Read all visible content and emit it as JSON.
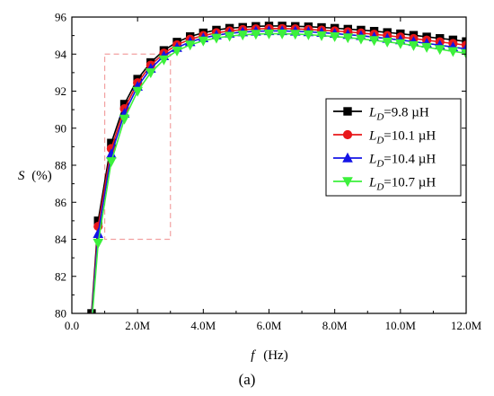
{
  "chart_data": {
    "type": "line",
    "title": "",
    "caption": "(a)",
    "xlabel": {
      "var": "f",
      "unit": "(Hz)"
    },
    "ylabel": {
      "var": "S",
      "unit": "(%)"
    },
    "xlim": [
      0,
      12000000
    ],
    "ylim": [
      80,
      96
    ],
    "xticks": [
      0,
      2000000,
      4000000,
      6000000,
      8000000,
      10000000,
      12000000
    ],
    "xtick_labels": [
      "0.0",
      "2.0M",
      "4.0M",
      "6.0M",
      "8.0M",
      "10.0M",
      "12.0M"
    ],
    "yticks": [
      80,
      82,
      84,
      86,
      88,
      90,
      92,
      94,
      96
    ],
    "ytick_labels": [
      "80",
      "82",
      "84",
      "86",
      "88",
      "90",
      "92",
      "94",
      "96"
    ],
    "grid": false,
    "legend_position": "center-right",
    "series": [
      {
        "name": "L_D=9.8 µH",
        "label_sym": "L",
        "label_sub": "D",
        "label_rest": "=9.8 µH",
        "color": "#000000",
        "marker": "square",
        "x": [
          600000,
          800000,
          1200000,
          1600000,
          2000000,
          2400000,
          2800000,
          3200000,
          3600000,
          4000000,
          4400000,
          4800000,
          5200000,
          5600000,
          6000000,
          6400000,
          6800000,
          7200000,
          7600000,
          8000000,
          8400000,
          8800000,
          9200000,
          9600000,
          10000000,
          10400000,
          10800000,
          11200000,
          11600000,
          12000000
        ],
        "y": [
          80.0,
          85.0,
          89.2,
          91.3,
          92.65,
          93.55,
          94.2,
          94.65,
          94.95,
          95.15,
          95.3,
          95.4,
          95.45,
          95.5,
          95.52,
          95.52,
          95.5,
          95.48,
          95.44,
          95.4,
          95.35,
          95.3,
          95.24,
          95.17,
          95.1,
          95.02,
          94.93,
          94.85,
          94.77,
          94.68
        ]
      },
      {
        "name": "L_D=10.1 µH",
        "label_sym": "L",
        "label_sub": "D",
        "label_rest": "=10.1 µH",
        "color": "#e8171a",
        "marker": "circle",
        "x": [
          600000,
          800000,
          1200000,
          1600000,
          2000000,
          2400000,
          2800000,
          3200000,
          3600000,
          4000000,
          4400000,
          4800000,
          5200000,
          5600000,
          6000000,
          6400000,
          6800000,
          7200000,
          7600000,
          8000000,
          8400000,
          8800000,
          9200000,
          9600000,
          10000000,
          10400000,
          10800000,
          11200000,
          11600000,
          12000000
        ],
        "y": [
          79.8,
          84.7,
          88.9,
          91.05,
          92.45,
          93.4,
          94.05,
          94.5,
          94.8,
          95.0,
          95.15,
          95.25,
          95.32,
          95.36,
          95.38,
          95.38,
          95.36,
          95.33,
          95.29,
          95.25,
          95.2,
          95.14,
          95.07,
          95.0,
          94.92,
          94.84,
          94.75,
          94.66,
          94.57,
          94.48
        ]
      },
      {
        "name": "L_D=10.4 µH",
        "label_sym": "L",
        "label_sub": "D",
        "label_rest": "=10.4 µH",
        "color": "#1414e6",
        "marker": "triangle-up",
        "x": [
          600000,
          800000,
          1200000,
          1600000,
          2000000,
          2400000,
          2800000,
          3200000,
          3600000,
          4000000,
          4400000,
          4800000,
          5200000,
          5600000,
          6000000,
          6400000,
          6800000,
          7200000,
          7600000,
          8000000,
          8400000,
          8800000,
          9200000,
          9600000,
          10000000,
          10400000,
          10800000,
          11200000,
          11600000,
          12000000
        ],
        "y": [
          79.6,
          84.3,
          88.6,
          90.8,
          92.25,
          93.22,
          93.9,
          94.35,
          94.66,
          94.87,
          95.02,
          95.12,
          95.19,
          95.23,
          95.25,
          95.25,
          95.23,
          95.2,
          95.16,
          95.11,
          95.05,
          94.99,
          94.92,
          94.84,
          94.76,
          94.67,
          94.58,
          94.48,
          94.38,
          94.28
        ]
      },
      {
        "name": "L_D=10.7 µH",
        "label_sym": "L",
        "label_sub": "D",
        "label_rest": "=10.7 µH",
        "color": "#3cf03c",
        "marker": "triangle-down",
        "x": [
          600000,
          800000,
          1200000,
          1600000,
          2000000,
          2400000,
          2800000,
          3200000,
          3600000,
          4000000,
          4400000,
          4800000,
          5200000,
          5600000,
          6000000,
          6400000,
          6800000,
          7200000,
          7600000,
          8000000,
          8400000,
          8800000,
          9200000,
          9600000,
          10000000,
          10400000,
          10800000,
          11200000,
          11600000,
          12000000
        ],
        "y": [
          79.4,
          83.8,
          88.2,
          90.5,
          92.0,
          93.0,
          93.7,
          94.18,
          94.5,
          94.72,
          94.87,
          94.97,
          95.04,
          95.08,
          95.1,
          95.1,
          95.08,
          95.05,
          95.0,
          94.95,
          94.89,
          94.82,
          94.74,
          94.66,
          94.57,
          94.47,
          94.37,
          94.26,
          94.15,
          94.04
        ]
      }
    ],
    "annotation_box": {
      "style": "dashed",
      "color": "#f2a0a0",
      "x_range": [
        1000000,
        3000000
      ],
      "y_range": [
        84,
        94
      ]
    }
  }
}
